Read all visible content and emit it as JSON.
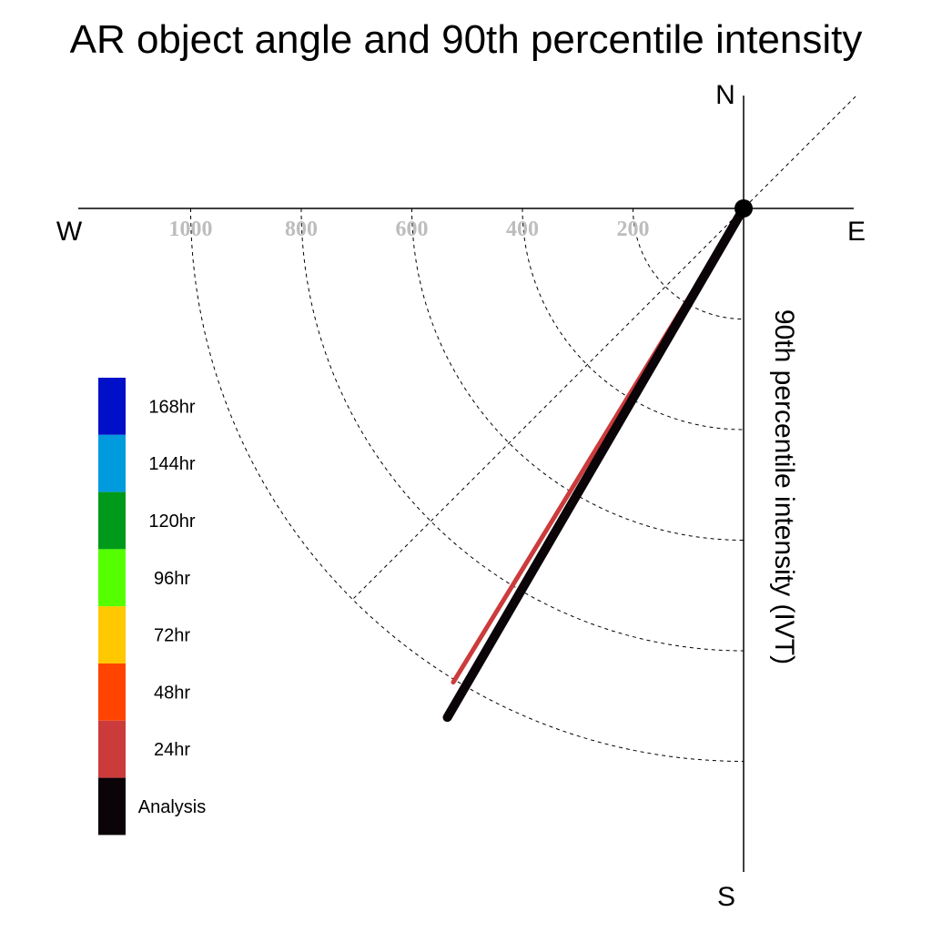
{
  "chart_data": {
    "type": "polar-vector",
    "title": "AR object angle and 90th percentile intensity",
    "ylabel": "90th percentile intensity (IVT)",
    "compass": {
      "north": "N",
      "south": "S",
      "east": "E",
      "west": "W"
    },
    "radial_ticks": [
      {
        "value": 200,
        "label": "200"
      },
      {
        "value": 400,
        "label": "400"
      },
      {
        "value": 600,
        "label": "600"
      },
      {
        "value": 800,
        "label": "800"
      },
      {
        "value": 1000,
        "label": "1000"
      }
    ],
    "rlim": [
      0,
      1200
    ],
    "series": [
      {
        "name": "48hr",
        "color": "#e8461f",
        "angle_deg": 210.2,
        "intensity": 860,
        "width": 4
      },
      {
        "name": "24hr",
        "color": "#cc3b3b",
        "angle_deg": 211.5,
        "intensity": 1005,
        "width": 5
      },
      {
        "name": "Analysis",
        "color": "#0a0308",
        "angle_deg": 210.2,
        "intensity": 1065,
        "width": 10
      }
    ],
    "legend": [
      {
        "label": "168hr",
        "color": "#0010c8"
      },
      {
        "label": "144hr",
        "color": "#009ade"
      },
      {
        "label": "120hr",
        "color": "#009a1a"
      },
      {
        "label": "96hr",
        "color": "#55ff00"
      },
      {
        "label": "72hr",
        "color": "#ffc800"
      },
      {
        "label": "48hr",
        "color": "#ff4400"
      },
      {
        "label": "24hr",
        "color": "#cc3b3b"
      },
      {
        "label": "Analysis",
        "color": "#0a0308"
      }
    ]
  }
}
